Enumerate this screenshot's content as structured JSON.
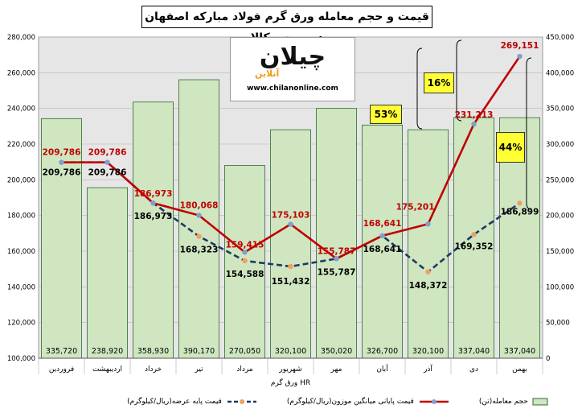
{
  "title": "قیمت و حجم معامله ورق گرم فولاد مبارکه اصفهان در بورس کالا",
  "logo": {
    "brand": "چیلان",
    "sub": "آنلاین",
    "url": "www.chilanonline.com"
  },
  "colors": {
    "bars": "#cfe6c1",
    "bar_border": "#2d6b2d",
    "avg_line": "#c00000",
    "avg_marker": "#7f9fd0",
    "base_line": "#1f3864",
    "base_marker": "#f0a060",
    "callout": "#ffff33"
  },
  "chart_data": {
    "type": "bar",
    "categories": [
      "فروردین",
      "اردیبهشت",
      "خرداد",
      "تیر",
      "مرداد",
      "شهریور",
      "مهر",
      "آبان",
      "آذر",
      "دی",
      "بهمن"
    ],
    "category_label_below": "ورق گرم HR",
    "left_axis": {
      "ylim": [
        100000,
        280000
      ],
      "ticks": [
        "100,000",
        "120,000",
        "140,000",
        "160,000",
        "180,000",
        "200,000",
        "220,000",
        "240,000",
        "260,000",
        "280,000"
      ]
    },
    "right_axis": {
      "ylim": [
        0,
        450000
      ],
      "ticks": [
        "0",
        "50,000",
        "100,000",
        "150,000",
        "200,000",
        "250,000",
        "300,000",
        "350,000",
        "400,000",
        "450,000"
      ]
    },
    "series": [
      {
        "name": "حجم معامله(تن)",
        "type": "bar",
        "axis": "right",
        "values": [
          335720,
          238920,
          358930,
          390170,
          270050,
          320100,
          350020,
          326700,
          320100,
          337040,
          337040
        ],
        "labels": [
          "335,720",
          "238,920",
          "358,930",
          "390,170",
          "270,050",
          "320,100",
          "350,020",
          "326,700",
          "320,100",
          "337,040",
          "337,040"
        ]
      },
      {
        "name": "قیمت پایانی میانگین موزون(ریال/کیلوگرم)",
        "type": "line",
        "axis": "left",
        "values": [
          209786,
          209786,
          186973,
          180068,
          159415,
          175103,
          155787,
          168641,
          175201,
          231213,
          269151
        ],
        "labels": [
          "209,786",
          "209,786",
          "186,973",
          "180,068",
          "159,415",
          "175,103",
          "155,787",
          "168,641",
          "175,201",
          "231,213",
          "269,151"
        ]
      },
      {
        "name": "قیمت پایه عرضه(ریال/کیلوگرم)",
        "type": "dashed-line",
        "axis": "left",
        "values": [
          209786,
          209786,
          186973,
          168323,
          154588,
          151432,
          155787,
          168641,
          148372,
          169352,
          186899
        ],
        "labels": [
          "209,786",
          "209,786",
          "186,973",
          "168,323",
          "154,588",
          "151,432",
          "155,787",
          "168,641",
          "148,372",
          "169,352",
          "186,899"
        ]
      }
    ],
    "annotations": [
      "53%",
      "16%",
      "44%"
    ],
    "legend": "bottom"
  }
}
